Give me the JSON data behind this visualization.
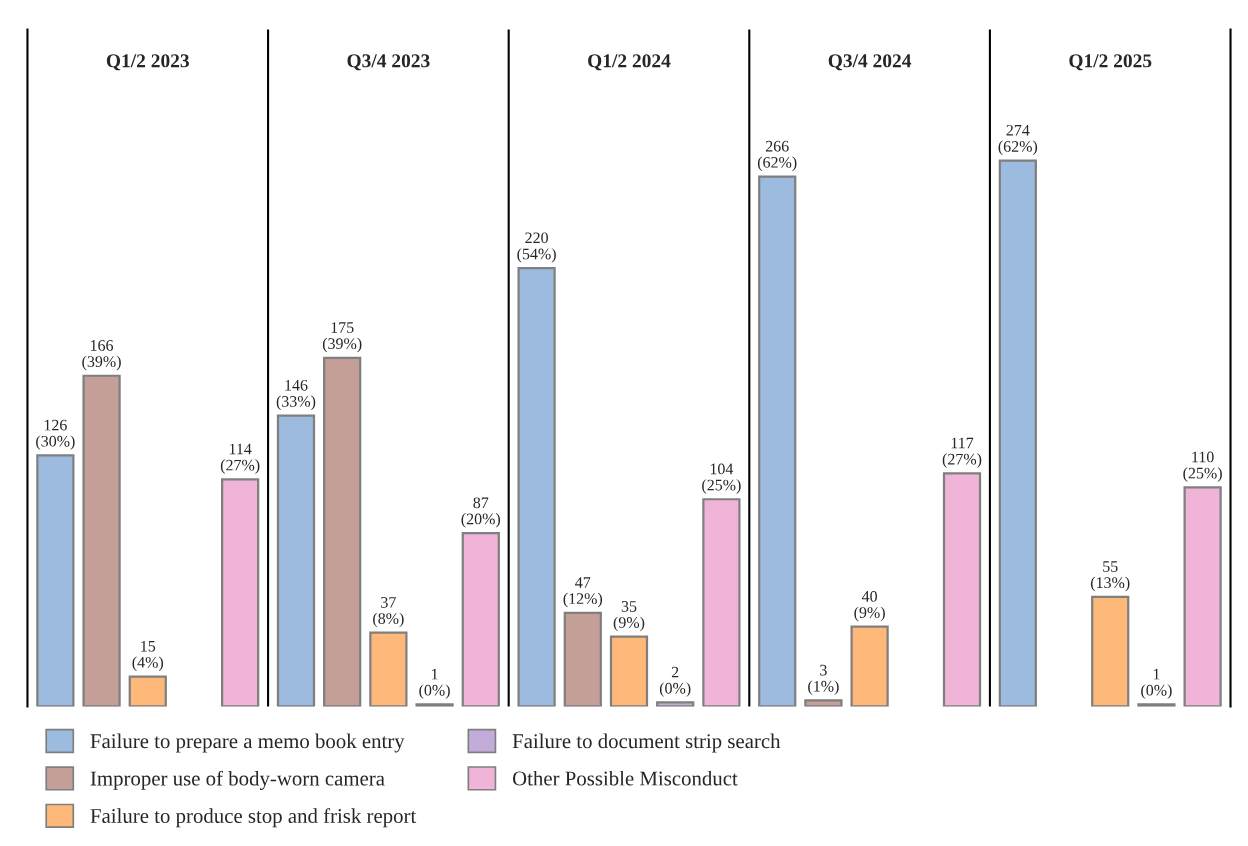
{
  "chart_data": {
    "type": "bar",
    "categories": [
      "Q1/2 2023",
      "Q3/4 2023",
      "Q1/2 2024",
      "Q3/4 2024",
      "Q1/2 2025"
    ],
    "tick_labels": "x",
    "grid": "x",
    "legend": "bottom",
    "series": [
      {
        "name": "Failure to prepare a memo book entry",
        "color": "#9dbadf",
        "values": [
          126,
          146,
          220,
          266,
          274
        ],
        "value_labels": [
          "126\n(30%)",
          "146\n(33%)",
          "220\n(54%)",
          "266\n(62%)",
          "274\n(62%)"
        ]
      },
      {
        "name": "Improper use of body-worn camera",
        "color": "#c39f98",
        "values": [
          166,
          175,
          47,
          3,
          null
        ],
        "value_labels": [
          "166\n(39%)",
          "175\n(39%)",
          "47\n(12%)",
          "3\n(1%)",
          null
        ]
      },
      {
        "name": "Failure to produce stop and frisk report",
        "color": "#fdb87a",
        "values": [
          15,
          37,
          35,
          40,
          55
        ],
        "value_labels": [
          "15\n(4%)",
          "37\n(8%)",
          "35\n(9%)",
          "40\n(9%)",
          "55\n(13%)"
        ]
      },
      {
        "name": "Failure to document strip search",
        "color": "#c2acd9",
        "values": [
          null,
          1,
          2,
          null,
          1
        ],
        "value_labels": [
          null,
          "1\n(0%)",
          "2\n(0%)",
          null,
          "1\n(0%)"
        ]
      },
      {
        "name": "Other Possible Misconduct",
        "color": "#f0b4d8",
        "values": [
          114,
          87,
          104,
          117,
          110
        ],
        "value_labels": [
          "114\n(27%)",
          "87\n(20%)",
          "104\n(25%)",
          "117\n(27%)",
          "110\n(25%)"
        ]
      }
    ]
  }
}
